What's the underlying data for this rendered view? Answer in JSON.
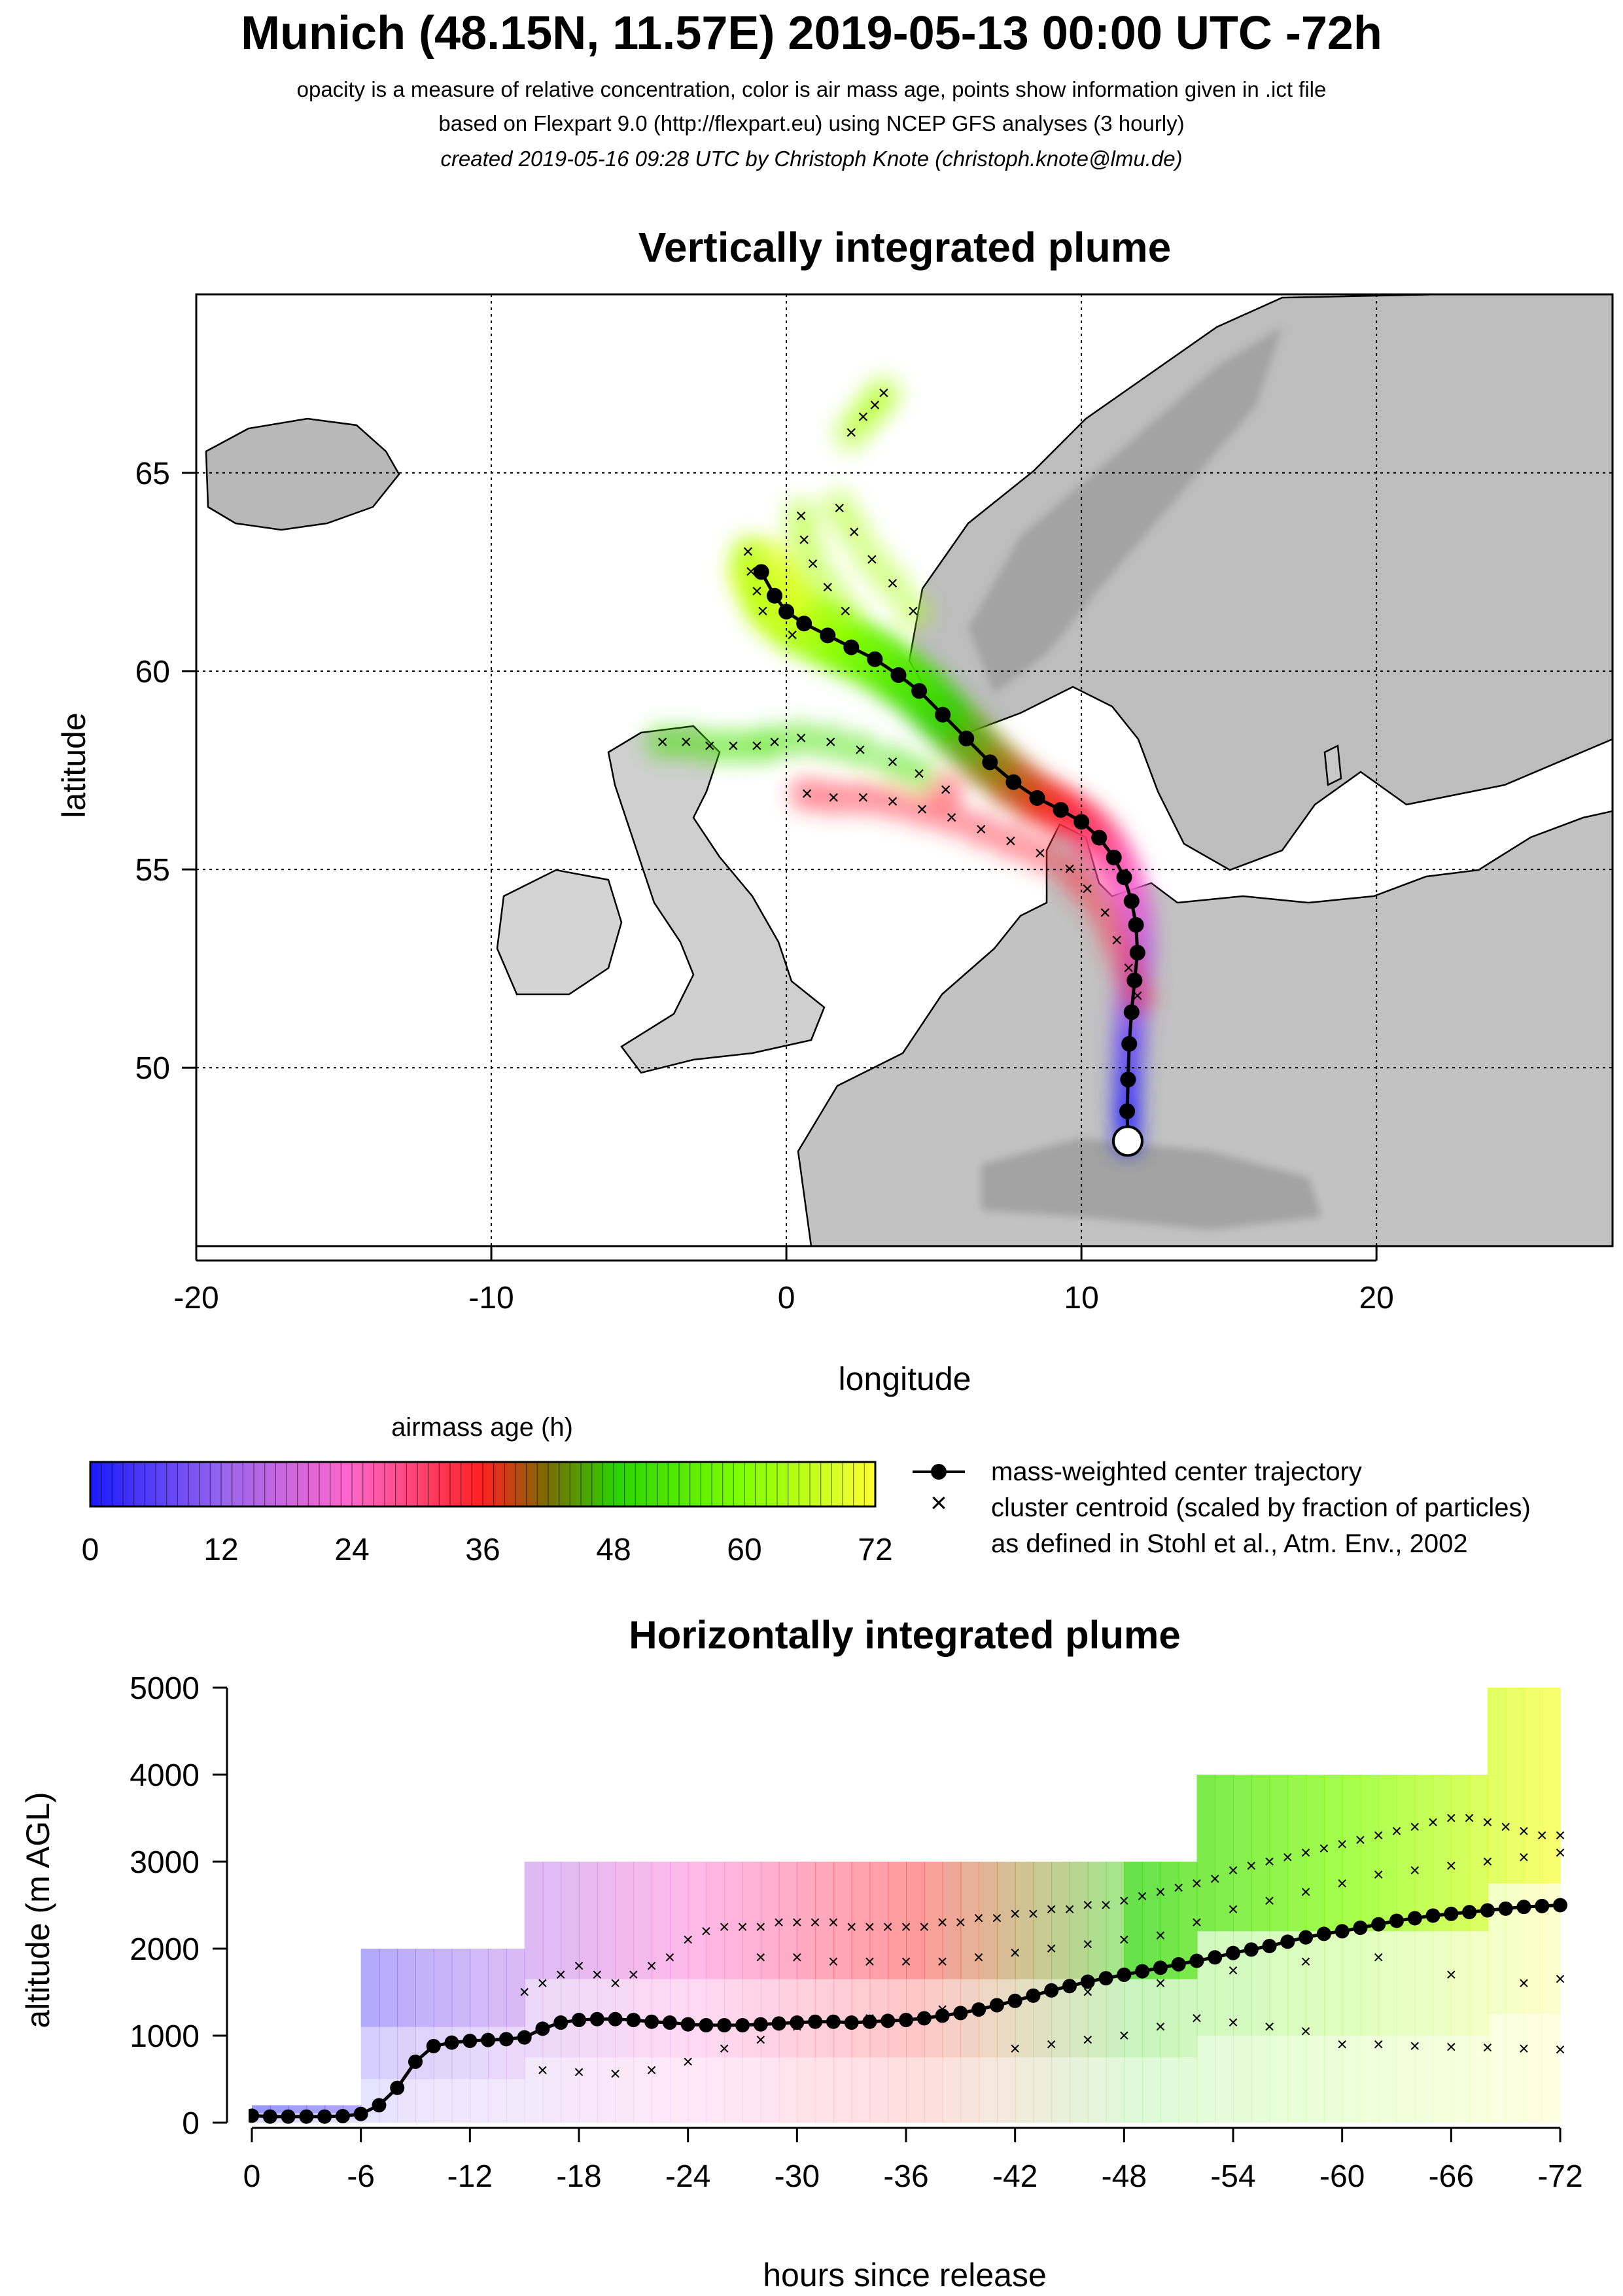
{
  "header": {
    "title": "Munich (48.15N, 11.57E) 2019-05-13 00:00 UTC -72h",
    "subtitle_1": "opacity is a measure of relative concentration, color is air mass age, points show information given in .ict file",
    "subtitle_2": "based on Flexpart 9.0 (http://flexpart.eu) using NCEP GFS analyses (3 hourly)",
    "subtitle_3": "created 2019-05-16 09:28 UTC by Christoph Knote (christoph.knote@lmu.de)"
  },
  "colors": {
    "age_0": "#1a1aff",
    "age_12": "#9966ee",
    "age_24": "#ff66cc",
    "age_36": "#ff2020",
    "age_48": "#2ad400",
    "age_60": "#80ff00",
    "age_72": "#ffff33",
    "land": "#c8c8c8",
    "sea": "#ffffff"
  },
  "chart_data": [
    {
      "type": "scatter",
      "panel": "map",
      "title": "Vertically integrated plume",
      "xlabel": "longitude",
      "ylabel": "latitude",
      "xlim": [
        -20,
        28
      ],
      "ylim": [
        45.5,
        69.5
      ],
      "x_ticks": [
        -20,
        -10,
        0,
        10,
        20
      ],
      "y_ticks": [
        50,
        55,
        60,
        65
      ],
      "grid": "dotted",
      "release_point": {
        "lon": 11.57,
        "lat": 48.15
      },
      "series": [
        {
          "name": "mass-weighted center trajectory",
          "lon": [
            11.57,
            11.55,
            11.58,
            11.62,
            11.7,
            11.8,
            11.9,
            11.85,
            11.7,
            11.45,
            11.1,
            10.6,
            10.0,
            9.3,
            8.5,
            7.7,
            6.9,
            6.1,
            5.3,
            4.5,
            3.8,
            3.0,
            2.2,
            1.4,
            0.6,
            0.0,
            -0.4,
            -0.85
          ],
          "lat": [
            48.15,
            48.9,
            49.7,
            50.6,
            51.4,
            52.2,
            52.9,
            53.6,
            54.2,
            54.8,
            55.3,
            55.8,
            56.2,
            56.5,
            56.8,
            57.2,
            57.7,
            58.3,
            58.9,
            59.5,
            59.9,
            60.3,
            60.6,
            60.9,
            61.2,
            61.5,
            61.9,
            62.5
          ]
        },
        {
          "name": "cluster centroid (scaled by fraction of particles)",
          "lon": [
            2.2,
            2.6,
            3.0,
            3.3,
            1.8,
            2.3,
            2.9,
            3.6,
            4.3,
            0.5,
            0.6,
            0.9,
            1.4,
            2.0,
            -1.3,
            -1.2,
            -1.0,
            -0.8,
            0.2,
            -4.2,
            -3.4,
            -2.6,
            -1.8,
            -1.0,
            -0.4,
            0.5,
            1.5,
            2.5,
            3.6,
            4.5,
            5.4,
            0.7,
            1.6,
            2.6,
            3.6,
            4.6,
            5.6,
            6.6,
            7.6,
            8.6,
            9.6,
            10.2,
            10.8,
            11.2,
            11.6,
            11.9
          ],
          "lat": [
            66.0,
            66.4,
            66.7,
            67.0,
            64.1,
            63.5,
            62.8,
            62.2,
            61.5,
            63.9,
            63.3,
            62.7,
            62.1,
            61.5,
            63.0,
            62.5,
            62.0,
            61.5,
            60.9,
            58.2,
            58.2,
            58.1,
            58.1,
            58.1,
            58.2,
            58.3,
            58.2,
            58.0,
            57.7,
            57.4,
            57.0,
            56.9,
            56.8,
            56.8,
            56.7,
            56.5,
            56.3,
            56.0,
            55.7,
            55.4,
            55.0,
            54.5,
            53.9,
            53.2,
            52.5,
            51.8
          ]
        }
      ],
      "plume_note": "plume shaded by airmass age"
    },
    {
      "type": "scatter",
      "panel": "profile",
      "title": "Horizontally integrated plume",
      "xlabel": "hours since release",
      "ylabel": "altitude (m AGL)",
      "xlim": [
        0,
        -72
      ],
      "ylim": [
        0,
        5000
      ],
      "x_ticks": [
        0,
        -6,
        -12,
        -18,
        -24,
        -30,
        -36,
        -42,
        -48,
        -54,
        -60,
        -66,
        -72
      ],
      "y_ticks": [
        0,
        1000,
        2000,
        3000,
        4000,
        5000
      ],
      "colorbar": {
        "label": "airmass age (h)",
        "ticks": [
          0,
          12,
          24,
          36,
          48,
          60,
          72
        ]
      },
      "series": [
        {
          "name": "mass-weighted center trajectory",
          "x": [
            0,
            -1,
            -2,
            -3,
            -4,
            -5,
            -6,
            -7,
            -8,
            -9,
            -10,
            -11,
            -12,
            -13,
            -14,
            -15,
            -16,
            -17,
            -18,
            -19,
            -20,
            -21,
            -22,
            -23,
            -24,
            -25,
            -26,
            -27,
            -28,
            -29,
            -30,
            -31,
            -32,
            -33,
            -34,
            -35,
            -36,
            -37,
            -38,
            -39,
            -40,
            -41,
            -42,
            -43,
            -44,
            -45,
            -46,
            -47,
            -48,
            -49,
            -50,
            -51,
            -52,
            -53,
            -54,
            -55,
            -56,
            -57,
            -58,
            -59,
            -60,
            -61,
            -62,
            -63,
            -64,
            -65,
            -66,
            -67,
            -68,
            -69,
            -70,
            -71,
            -72
          ],
          "y": [
            80,
            70,
            70,
            70,
            70,
            75,
            100,
            200,
            400,
            700,
            880,
            920,
            940,
            950,
            960,
            980,
            1080,
            1150,
            1180,
            1190,
            1190,
            1180,
            1160,
            1150,
            1130,
            1120,
            1120,
            1120,
            1130,
            1140,
            1150,
            1160,
            1160,
            1150,
            1160,
            1170,
            1180,
            1200,
            1230,
            1260,
            1300,
            1350,
            1400,
            1460,
            1520,
            1570,
            1620,
            1660,
            1700,
            1740,
            1780,
            1820,
            1860,
            1900,
            1950,
            1990,
            2030,
            2080,
            2130,
            2170,
            2200,
            2240,
            2280,
            2320,
            2350,
            2380,
            2400,
            2420,
            2440,
            2460,
            2480,
            2490,
            2500
          ]
        },
        {
          "name": "cluster centroid (scaled by fraction of particles)",
          "x": [
            -15,
            -16,
            -17,
            -18,
            -19,
            -20,
            -21,
            -22,
            -23,
            -24,
            -25,
            -26,
            -27,
            -28,
            -29,
            -30,
            -31,
            -32,
            -33,
            -34,
            -35,
            -36,
            -37,
            -38,
            -39,
            -40,
            -41,
            -42,
            -43,
            -44,
            -45,
            -46,
            -47,
            -48,
            -49,
            -50,
            -51,
            -52,
            -53,
            -54,
            -55,
            -56,
            -57,
            -58,
            -59,
            -60,
            -61,
            -62,
            -63,
            -64,
            -65,
            -66,
            -67,
            -68,
            -69,
            -70,
            -71,
            -72,
            -28,
            -30,
            -32,
            -34,
            -36,
            -38,
            -40,
            -42,
            -44,
            -46,
            -48,
            -50,
            -52,
            -54,
            -56,
            -58,
            -60,
            -62,
            -64,
            -66,
            -68,
            -70,
            -72,
            -42,
            -44,
            -46,
            -48,
            -50,
            -52,
            -54,
            -56,
            -58,
            -60,
            -62,
            -64,
            -66,
            -68,
            -70,
            -72,
            -16,
            -18,
            -20,
            -22,
            -24,
            -26,
            -28,
            -30,
            -34,
            -38,
            -42,
            -46,
            -50,
            -54,
            -58,
            -62,
            -66,
            -70,
            -72
          ],
          "y": [
            1500,
            1600,
            1700,
            1800,
            1700,
            1600,
            1700,
            1800,
            1900,
            2100,
            2200,
            2250,
            2250,
            2250,
            2300,
            2300,
            2300,
            2300,
            2250,
            2250,
            2250,
            2250,
            2250,
            2300,
            2300,
            2350,
            2350,
            2400,
            2400,
            2450,
            2450,
            2500,
            2500,
            2550,
            2600,
            2650,
            2700,
            2750,
            2800,
            2900,
            2950,
            3000,
            3050,
            3100,
            3150,
            3200,
            3250,
            3300,
            3350,
            3400,
            3450,
            3500,
            3500,
            3450,
            3400,
            3350,
            3300,
            3300,
            1900,
            1900,
            1850,
            1850,
            1850,
            1850,
            1900,
            1950,
            2000,
            2050,
            2100,
            2150,
            2300,
            2450,
            2550,
            2650,
            2750,
            2850,
            2900,
            2950,
            3000,
            3050,
            3100,
            850,
            900,
            950,
            1000,
            1100,
            1200,
            1150,
            1100,
            1050,
            900,
            900,
            880,
            870,
            860,
            850,
            840,
            600,
            580,
            560,
            600,
            700,
            850,
            950,
            1100,
            1200,
            1300,
            1400,
            1500,
            1600,
            1750,
            1850,
            1900,
            1700,
            1600,
            1650
          ]
        }
      ]
    }
  ]
}
